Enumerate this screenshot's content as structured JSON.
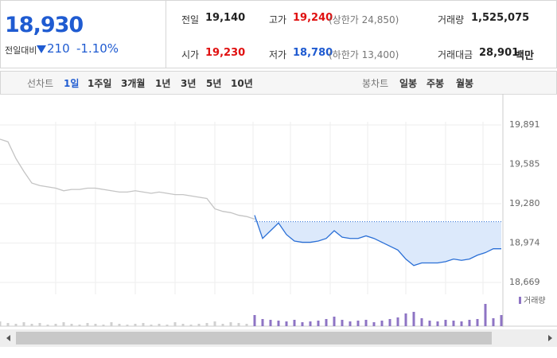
{
  "header": {
    "price": "18,930",
    "change_label": "전일대비",
    "change": "210",
    "change_rate": "-1.10%"
  },
  "info": [
    {
      "label": "전일",
      "value": "19,140"
    },
    {
      "label": "고가",
      "value": "19,240",
      "note": "(상한가 24,850)"
    },
    {
      "label": "거래량",
      "value": "1,525,075"
    },
    {
      "label": "시가",
      "value": "19,230"
    },
    {
      "label": "저가",
      "value": "18,780",
      "note": "(하한가 13,400)"
    },
    {
      "label": "거래대금",
      "value": "28,901",
      "unit": "백만"
    }
  ],
  "tabs": {
    "line_label": "선차트",
    "line": [
      "1일",
      "1주일",
      "3개월",
      "1년",
      "3년",
      "5년",
      "10년"
    ],
    "candle_label": "봉차트",
    "candle": [
      "일봉",
      "주봉",
      "월봉"
    ]
  },
  "chart_data": {
    "type": "line",
    "ylim": [
      18607,
      20070
    ],
    "yticks": [
      {
        "value": 19891,
        "label": "19,891"
      },
      {
        "value": 19585,
        "label": "19,585"
      },
      {
        "value": 19280,
        "label": "19,280"
      },
      {
        "value": 18974,
        "label": "18,974"
      },
      {
        "value": 18669,
        "label": "18,669"
      }
    ],
    "grid": true,
    "reference": 19140,
    "fill_color": "#dce9fb",
    "series": [
      {
        "color": "#c4c4c4",
        "values": [
          19780,
          19760,
          19630,
          19530,
          19440,
          19420,
          19410,
          19400,
          19380,
          19390,
          19390,
          19400,
          19400,
          19390,
          19380,
          19370,
          19370,
          19380,
          19370,
          19360,
          19370,
          19360,
          19350,
          19350,
          19340,
          19330,
          19320,
          19240,
          19220,
          19210,
          19190,
          19180,
          19160,
          null,
          null,
          null,
          null,
          null,
          null,
          null,
          null,
          null,
          null,
          null,
          null,
          null,
          null,
          null,
          null,
          null,
          null,
          null,
          null,
          null,
          null,
          null,
          null,
          null,
          null,
          null,
          null,
          null,
          null,
          null
        ]
      },
      {
        "color": "#2a6fd6",
        "values": [
          null,
          null,
          null,
          null,
          null,
          null,
          null,
          null,
          null,
          null,
          null,
          null,
          null,
          null,
          null,
          null,
          null,
          null,
          null,
          null,
          null,
          null,
          null,
          null,
          null,
          null,
          null,
          null,
          null,
          null,
          null,
          null,
          19190,
          19010,
          19070,
          19130,
          19040,
          18990,
          18980,
          18980,
          18990,
          19010,
          19070,
          19020,
          19010,
          19010,
          19030,
          19010,
          18980,
          18950,
          18920,
          18850,
          18800,
          18820,
          18820,
          18820,
          18830,
          18850,
          18840,
          18850,
          18880,
          18900,
          18930,
          18930
        ]
      }
    ],
    "volume_ylim": [
      0,
      40
    ],
    "volume": [
      {
        "color": "#d0d0d0",
        "values": [
          6,
          4,
          3,
          5,
          3,
          4,
          2,
          3,
          5,
          3,
          2,
          4,
          3,
          2,
          5,
          3,
          2,
          3,
          4,
          2,
          3,
          2,
          5,
          3,
          2,
          3,
          4,
          6,
          3,
          5,
          4,
          3,
          null,
          null,
          null,
          null,
          null,
          null,
          null,
          null,
          null,
          null,
          null,
          null,
          null,
          null,
          null,
          null,
          null,
          null,
          null,
          null,
          null,
          null,
          null,
          null,
          null,
          null,
          null,
          null,
          null,
          null,
          null,
          null
        ]
      },
      {
        "name": "거래량",
        "color": "#8e74c4",
        "values": [
          null,
          null,
          null,
          null,
          null,
          null,
          null,
          null,
          null,
          null,
          null,
          null,
          null,
          null,
          null,
          null,
          null,
          null,
          null,
          null,
          null,
          null,
          null,
          null,
          null,
          null,
          null,
          null,
          null,
          null,
          null,
          null,
          14,
          9,
          8,
          7,
          6,
          8,
          5,
          6,
          7,
          9,
          12,
          8,
          6,
          7,
          8,
          5,
          7,
          9,
          11,
          16,
          18,
          10,
          7,
          6,
          8,
          7,
          6,
          8,
          9,
          28,
          10,
          14
        ]
      }
    ]
  }
}
